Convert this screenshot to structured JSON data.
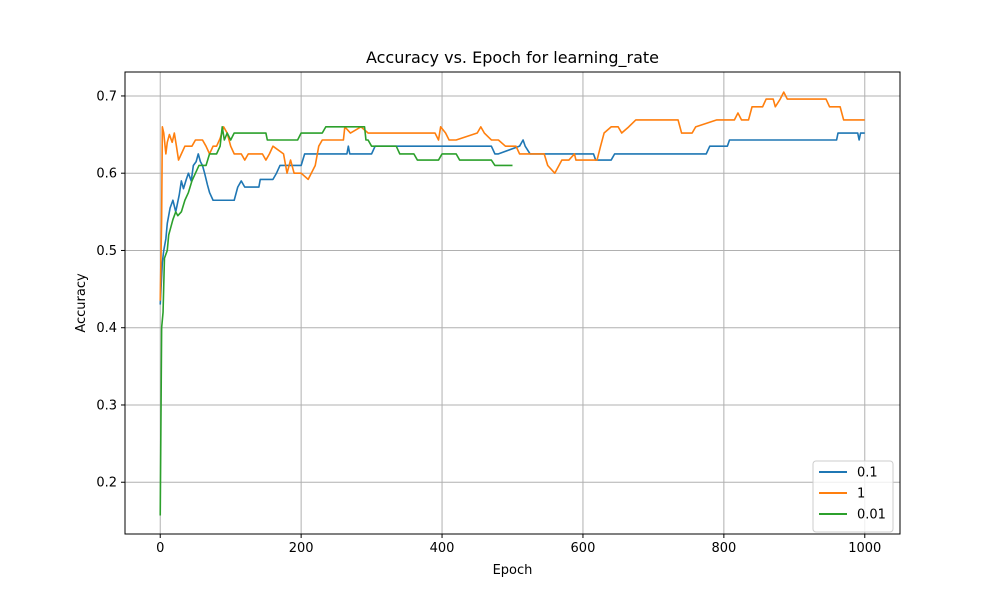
{
  "chart_data": {
    "type": "line",
    "title": "Accuracy vs. Epoch for learning_rate",
    "xlabel": "Epoch",
    "ylabel": "Accuracy",
    "xlim": [
      -50,
      1050
    ],
    "ylim": [
      0.133,
      0.731
    ],
    "xticks": [
      0,
      200,
      400,
      600,
      800,
      1000
    ],
    "yticks": [
      0.2,
      0.3,
      0.4,
      0.5,
      0.6,
      0.7
    ],
    "grid": true,
    "legend_position": "bottom-right",
    "series": [
      {
        "name": "0.1",
        "color": "#1f77b4",
        "points": [
          [
            0,
            0.43
          ],
          [
            3,
            0.485
          ],
          [
            5,
            0.5
          ],
          [
            8,
            0.515
          ],
          [
            10,
            0.535
          ],
          [
            14,
            0.555
          ],
          [
            18,
            0.565
          ],
          [
            22,
            0.55
          ],
          [
            27,
            0.572
          ],
          [
            30,
            0.59
          ],
          [
            33,
            0.58
          ],
          [
            37,
            0.592
          ],
          [
            40,
            0.6
          ],
          [
            44,
            0.59
          ],
          [
            47,
            0.61
          ],
          [
            51,
            0.615
          ],
          [
            54,
            0.625
          ],
          [
            57,
            0.615
          ],
          [
            60,
            0.61
          ],
          [
            63,
            0.6
          ],
          [
            67,
            0.585
          ],
          [
            70,
            0.575
          ],
          [
            75,
            0.565
          ],
          [
            80,
            0.565
          ],
          [
            105,
            0.565
          ],
          [
            110,
            0.582
          ],
          [
            115,
            0.59
          ],
          [
            120,
            0.582
          ],
          [
            140,
            0.582
          ],
          [
            142,
            0.592
          ],
          [
            160,
            0.592
          ],
          [
            165,
            0.6
          ],
          [
            170,
            0.61
          ],
          [
            200,
            0.61
          ],
          [
            205,
            0.625
          ],
          [
            265,
            0.625
          ],
          [
            267,
            0.635
          ],
          [
            269,
            0.625
          ],
          [
            300,
            0.625
          ],
          [
            305,
            0.635
          ],
          [
            410,
            0.635
          ],
          [
            415,
            0.635
          ],
          [
            470,
            0.635
          ],
          [
            475,
            0.625
          ],
          [
            480,
            0.625
          ],
          [
            510,
            0.635
          ],
          [
            515,
            0.643
          ],
          [
            518,
            0.635
          ],
          [
            525,
            0.625
          ],
          [
            615,
            0.625
          ],
          [
            618,
            0.617
          ],
          [
            640,
            0.617
          ],
          [
            645,
            0.625
          ],
          [
            775,
            0.625
          ],
          [
            780,
            0.635
          ],
          [
            805,
            0.635
          ],
          [
            808,
            0.643
          ],
          [
            960,
            0.643
          ],
          [
            962,
            0.652
          ],
          [
            990,
            0.652
          ],
          [
            992,
            0.643
          ],
          [
            994,
            0.652
          ],
          [
            1000,
            0.652
          ]
        ]
      },
      {
        "name": "1",
        "color": "#ff7f0e",
        "points": [
          [
            0,
            0.435
          ],
          [
            2,
            0.54
          ],
          [
            3,
            0.66
          ],
          [
            5,
            0.652
          ],
          [
            8,
            0.625
          ],
          [
            10,
            0.64
          ],
          [
            13,
            0.65
          ],
          [
            17,
            0.64
          ],
          [
            20,
            0.652
          ],
          [
            23,
            0.635
          ],
          [
            26,
            0.617
          ],
          [
            30,
            0.625
          ],
          [
            35,
            0.635
          ],
          [
            40,
            0.635
          ],
          [
            45,
            0.635
          ],
          [
            50,
            0.643
          ],
          [
            60,
            0.643
          ],
          [
            65,
            0.635
          ],
          [
            70,
            0.625
          ],
          [
            75,
            0.635
          ],
          [
            80,
            0.635
          ],
          [
            85,
            0.645
          ],
          [
            90,
            0.66
          ],
          [
            95,
            0.652
          ],
          [
            100,
            0.635
          ],
          [
            105,
            0.625
          ],
          [
            115,
            0.625
          ],
          [
            120,
            0.617
          ],
          [
            125,
            0.625
          ],
          [
            145,
            0.625
          ],
          [
            150,
            0.617
          ],
          [
            155,
            0.625
          ],
          [
            160,
            0.635
          ],
          [
            175,
            0.625
          ],
          [
            180,
            0.6
          ],
          [
            185,
            0.617
          ],
          [
            190,
            0.6
          ],
          [
            200,
            0.6
          ],
          [
            210,
            0.592
          ],
          [
            220,
            0.61
          ],
          [
            225,
            0.635
          ],
          [
            230,
            0.643
          ],
          [
            260,
            0.643
          ],
          [
            262,
            0.66
          ],
          [
            270,
            0.652
          ],
          [
            285,
            0.66
          ],
          [
            295,
            0.652
          ],
          [
            325,
            0.652
          ],
          [
            330,
            0.652
          ],
          [
            390,
            0.652
          ],
          [
            395,
            0.643
          ],
          [
            398,
            0.66
          ],
          [
            405,
            0.652
          ],
          [
            410,
            0.643
          ],
          [
            420,
            0.643
          ],
          [
            450,
            0.652
          ],
          [
            455,
            0.66
          ],
          [
            460,
            0.652
          ],
          [
            470,
            0.643
          ],
          [
            480,
            0.643
          ],
          [
            490,
            0.635
          ],
          [
            500,
            0.635
          ],
          [
            505,
            0.635
          ],
          [
            510,
            0.625
          ],
          [
            545,
            0.625
          ],
          [
            550,
            0.61
          ],
          [
            560,
            0.6
          ],
          [
            570,
            0.617
          ],
          [
            580,
            0.617
          ],
          [
            588,
            0.625
          ],
          [
            590,
            0.617
          ],
          [
            620,
            0.617
          ],
          [
            625,
            0.635
          ],
          [
            630,
            0.652
          ],
          [
            640,
            0.66
          ],
          [
            650,
            0.66
          ],
          [
            655,
            0.652
          ],
          [
            665,
            0.66
          ],
          [
            675,
            0.669
          ],
          [
            735,
            0.669
          ],
          [
            740,
            0.652
          ],
          [
            755,
            0.652
          ],
          [
            760,
            0.66
          ],
          [
            790,
            0.669
          ],
          [
            815,
            0.669
          ],
          [
            820,
            0.678
          ],
          [
            825,
            0.669
          ],
          [
            835,
            0.669
          ],
          [
            840,
            0.686
          ],
          [
            855,
            0.686
          ],
          [
            860,
            0.696
          ],
          [
            870,
            0.696
          ],
          [
            873,
            0.686
          ],
          [
            880,
            0.696
          ],
          [
            885,
            0.705
          ],
          [
            890,
            0.696
          ],
          [
            945,
            0.696
          ],
          [
            950,
            0.686
          ],
          [
            965,
            0.686
          ],
          [
            970,
            0.669
          ],
          [
            1000,
            0.669
          ]
        ]
      },
      {
        "name": "0.01",
        "color": "#2ca02c",
        "points": [
          [
            0,
            0.157
          ],
          [
            2,
            0.4
          ],
          [
            4,
            0.42
          ],
          [
            6,
            0.49
          ],
          [
            10,
            0.5
          ],
          [
            12,
            0.52
          ],
          [
            15,
            0.53
          ],
          [
            18,
            0.54
          ],
          [
            22,
            0.55
          ],
          [
            25,
            0.545
          ],
          [
            30,
            0.55
          ],
          [
            35,
            0.565
          ],
          [
            40,
            0.575
          ],
          [
            45,
            0.59
          ],
          [
            50,
            0.6
          ],
          [
            55,
            0.61
          ],
          [
            65,
            0.61
          ],
          [
            70,
            0.625
          ],
          [
            80,
            0.625
          ],
          [
            85,
            0.635
          ],
          [
            88,
            0.66
          ],
          [
            91,
            0.643
          ],
          [
            95,
            0.652
          ],
          [
            100,
            0.643
          ],
          [
            105,
            0.652
          ],
          [
            150,
            0.652
          ],
          [
            152,
            0.643
          ],
          [
            195,
            0.643
          ],
          [
            200,
            0.652
          ],
          [
            230,
            0.652
          ],
          [
            235,
            0.66
          ],
          [
            290,
            0.66
          ],
          [
            292,
            0.643
          ],
          [
            295,
            0.643
          ],
          [
            300,
            0.635
          ],
          [
            335,
            0.635
          ],
          [
            340,
            0.625
          ],
          [
            360,
            0.625
          ],
          [
            365,
            0.617
          ],
          [
            395,
            0.617
          ],
          [
            400,
            0.625
          ],
          [
            420,
            0.625
          ],
          [
            425,
            0.617
          ],
          [
            470,
            0.617
          ],
          [
            475,
            0.61
          ],
          [
            500,
            0.61
          ]
        ]
      }
    ]
  }
}
